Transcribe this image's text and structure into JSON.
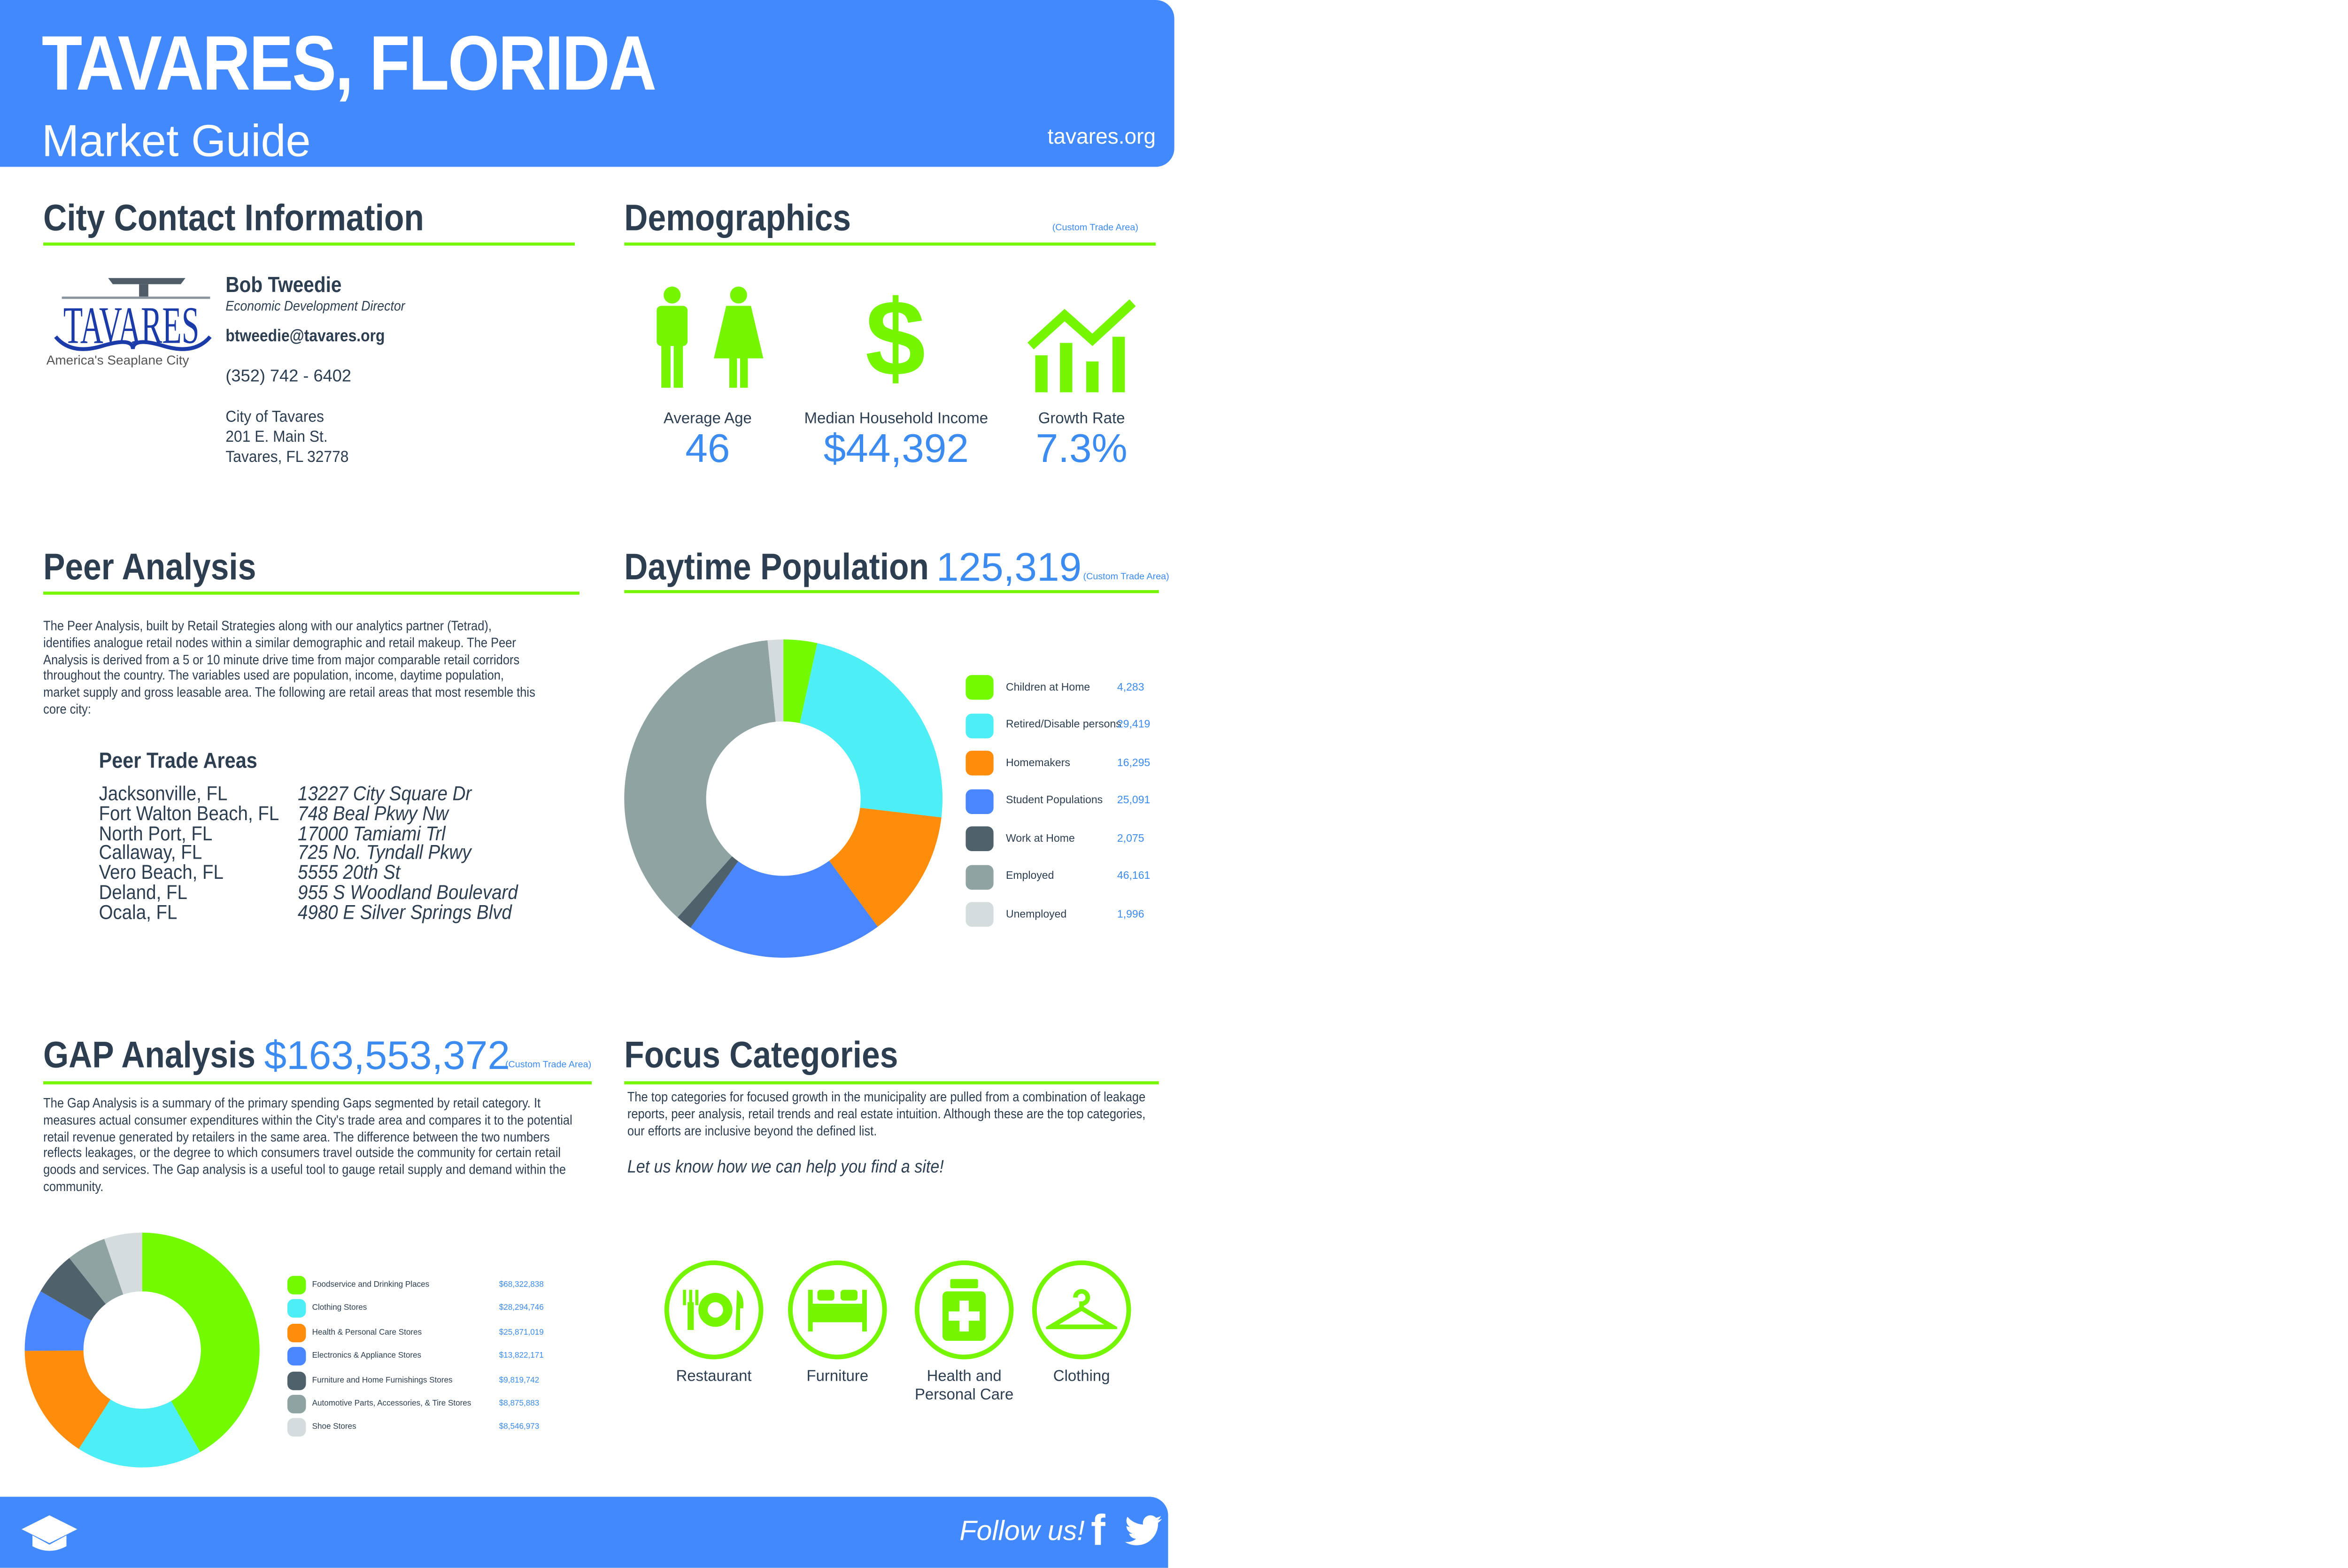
{
  "header": {
    "title": "TAVARES, FLORIDA",
    "subtitle": "Market Guide",
    "website": "tavares.org"
  },
  "contact": {
    "heading": "City Contact Information",
    "logo_text": "TAVARES",
    "logo_tagline": "America's Seaplane City",
    "name": "Bob Tweedie",
    "role": "Economic Development Director",
    "email": "btweedie@tavares.org",
    "phone": "(352) 742 - 6402",
    "address": [
      "City of Tavares",
      "201 E. Main St.",
      "Tavares, FL 32778"
    ]
  },
  "demographics": {
    "heading": "Demographics",
    "area_note": "(Custom Trade Area)",
    "stats": [
      {
        "icon": "people-icon",
        "label": "Average Age",
        "value": "46"
      },
      {
        "icon": "dollar-icon",
        "label": "Median Household Income",
        "value": "$44,392"
      },
      {
        "icon": "growth-chart-icon",
        "label": "Growth Rate",
        "value": "7.3%"
      }
    ]
  },
  "peer": {
    "heading": "Peer Analysis",
    "paragraph": "The Peer Analysis, built by Retail Strategies along with our analytics partner (Tetrad), identifies analogue retail nodes within a similar demographic and retail makeup. The Peer Analysis is derived from a 5 or 10 minute drive time from major comparable retail corridors throughout the country.  The variables used are population, income, daytime population, market supply and gross leasable area.  The following are retail areas that most resemble this core city:",
    "subheading": "Peer Trade Areas",
    "areas": [
      {
        "city": "Jacksonville, FL",
        "address": "13227 City Square Dr"
      },
      {
        "city": "Fort Walton Beach, FL",
        "address": "748 Beal Pkwy Nw"
      },
      {
        "city": "North Port, FL",
        "address": "17000 Tamiami Trl"
      },
      {
        "city": "Callaway, FL",
        "address": "725 No. Tyndall Pkwy"
      },
      {
        "city": "Vero Beach, FL",
        "address": "5555 20th St"
      },
      {
        "city": "Deland, FL",
        "address": "955 S Woodland Boulevard"
      },
      {
        "city": "Ocala, FL",
        "address": "4980 E Silver Springs Blvd"
      }
    ]
  },
  "daytime": {
    "heading": "Daytime Population",
    "total": "125,319",
    "area_note": "(Custom Trade Area)"
  },
  "gap": {
    "heading": "GAP Analysis",
    "total": "$163,553,372",
    "area_note": "(Custom Trade Area)",
    "paragraph": "The Gap Analysis is a summary of the primary spending Gaps segmented by retail category. It measures actual consumer expenditures within the City's trade area and compares it to the potential retail revenue generated by retailers in the same area. The difference between the two numbers reflects leakages, or the degree to which consumers travel outside the community for certain retail goods and services. The Gap analysis is a useful tool to gauge retail supply and demand within the community."
  },
  "focus": {
    "heading": "Focus Categories",
    "paragraph": "The top categories for focused growth in the municipality are pulled from a combination of leakage reports, peer analysis, retail trends and real estate intuition. Although these are the top categories, our efforts are inclusive beyond the defined list.",
    "cta": "Let us know how we can help you find a site!",
    "categories": [
      {
        "icon": "restaurant-icon",
        "label": "Restaurant"
      },
      {
        "icon": "bed-icon",
        "label": "Furniture"
      },
      {
        "icon": "medicine-bottle-icon",
        "label": "Health and Personal Care"
      },
      {
        "icon": "hanger-icon",
        "label": "Clothing"
      }
    ]
  },
  "footer": {
    "follow": "Follow us!",
    "icons": [
      "graduation-cap-icon",
      "facebook-icon",
      "twitter-icon"
    ]
  },
  "colors": {
    "brand_blue": "#4189fd",
    "accent_green": "#76f500",
    "value_blue": "#3b8bf0"
  },
  "chart_data": [
    {
      "type": "pie",
      "variant": "donut",
      "categories": [
        "Children at Home",
        "Retired/Disable persons",
        "Homemakers",
        "Student Populations",
        "Work at Home",
        "Employed",
        "Unemployed"
      ],
      "values": [
        4283,
        29419,
        16295,
        25091,
        2075,
        46161,
        1996
      ],
      "labels": [
        "4,283",
        "29,419",
        "16,295",
        "25,091",
        "2,075",
        "46,161",
        "1,996"
      ],
      "colors": [
        "#72fa00",
        "#4deef5",
        "#ff8c0a",
        "#4a86ff",
        "#4f626b",
        "#8fa3a3",
        "#d4dcdd"
      ],
      "legend": "right"
    },
    {
      "type": "pie",
      "variant": "donut",
      "categories": [
        "Foodservice and Drinking Places",
        "Clothing Stores",
        "Health & Personal Care Stores",
        "Electronics & Appliance Stores",
        "Furniture and Home Furnishings Stores",
        "Automotive Parts, Accessories, & Tire Stores",
        "Shoe Stores"
      ],
      "values": [
        68322838,
        28294746,
        25871019,
        13822171,
        9819742,
        8875883,
        8546973
      ],
      "labels": [
        "$68,322,838",
        "$28,294,746",
        "$25,871,019",
        "$13,822,171",
        "$9,819,742",
        "$8,875,883",
        "$8,546,973"
      ],
      "colors": [
        "#72fa00",
        "#4deef5",
        "#ff8c0a",
        "#4a86ff",
        "#4f626b",
        "#8fa3a3",
        "#d4dcdd"
      ],
      "legend": "right"
    }
  ]
}
